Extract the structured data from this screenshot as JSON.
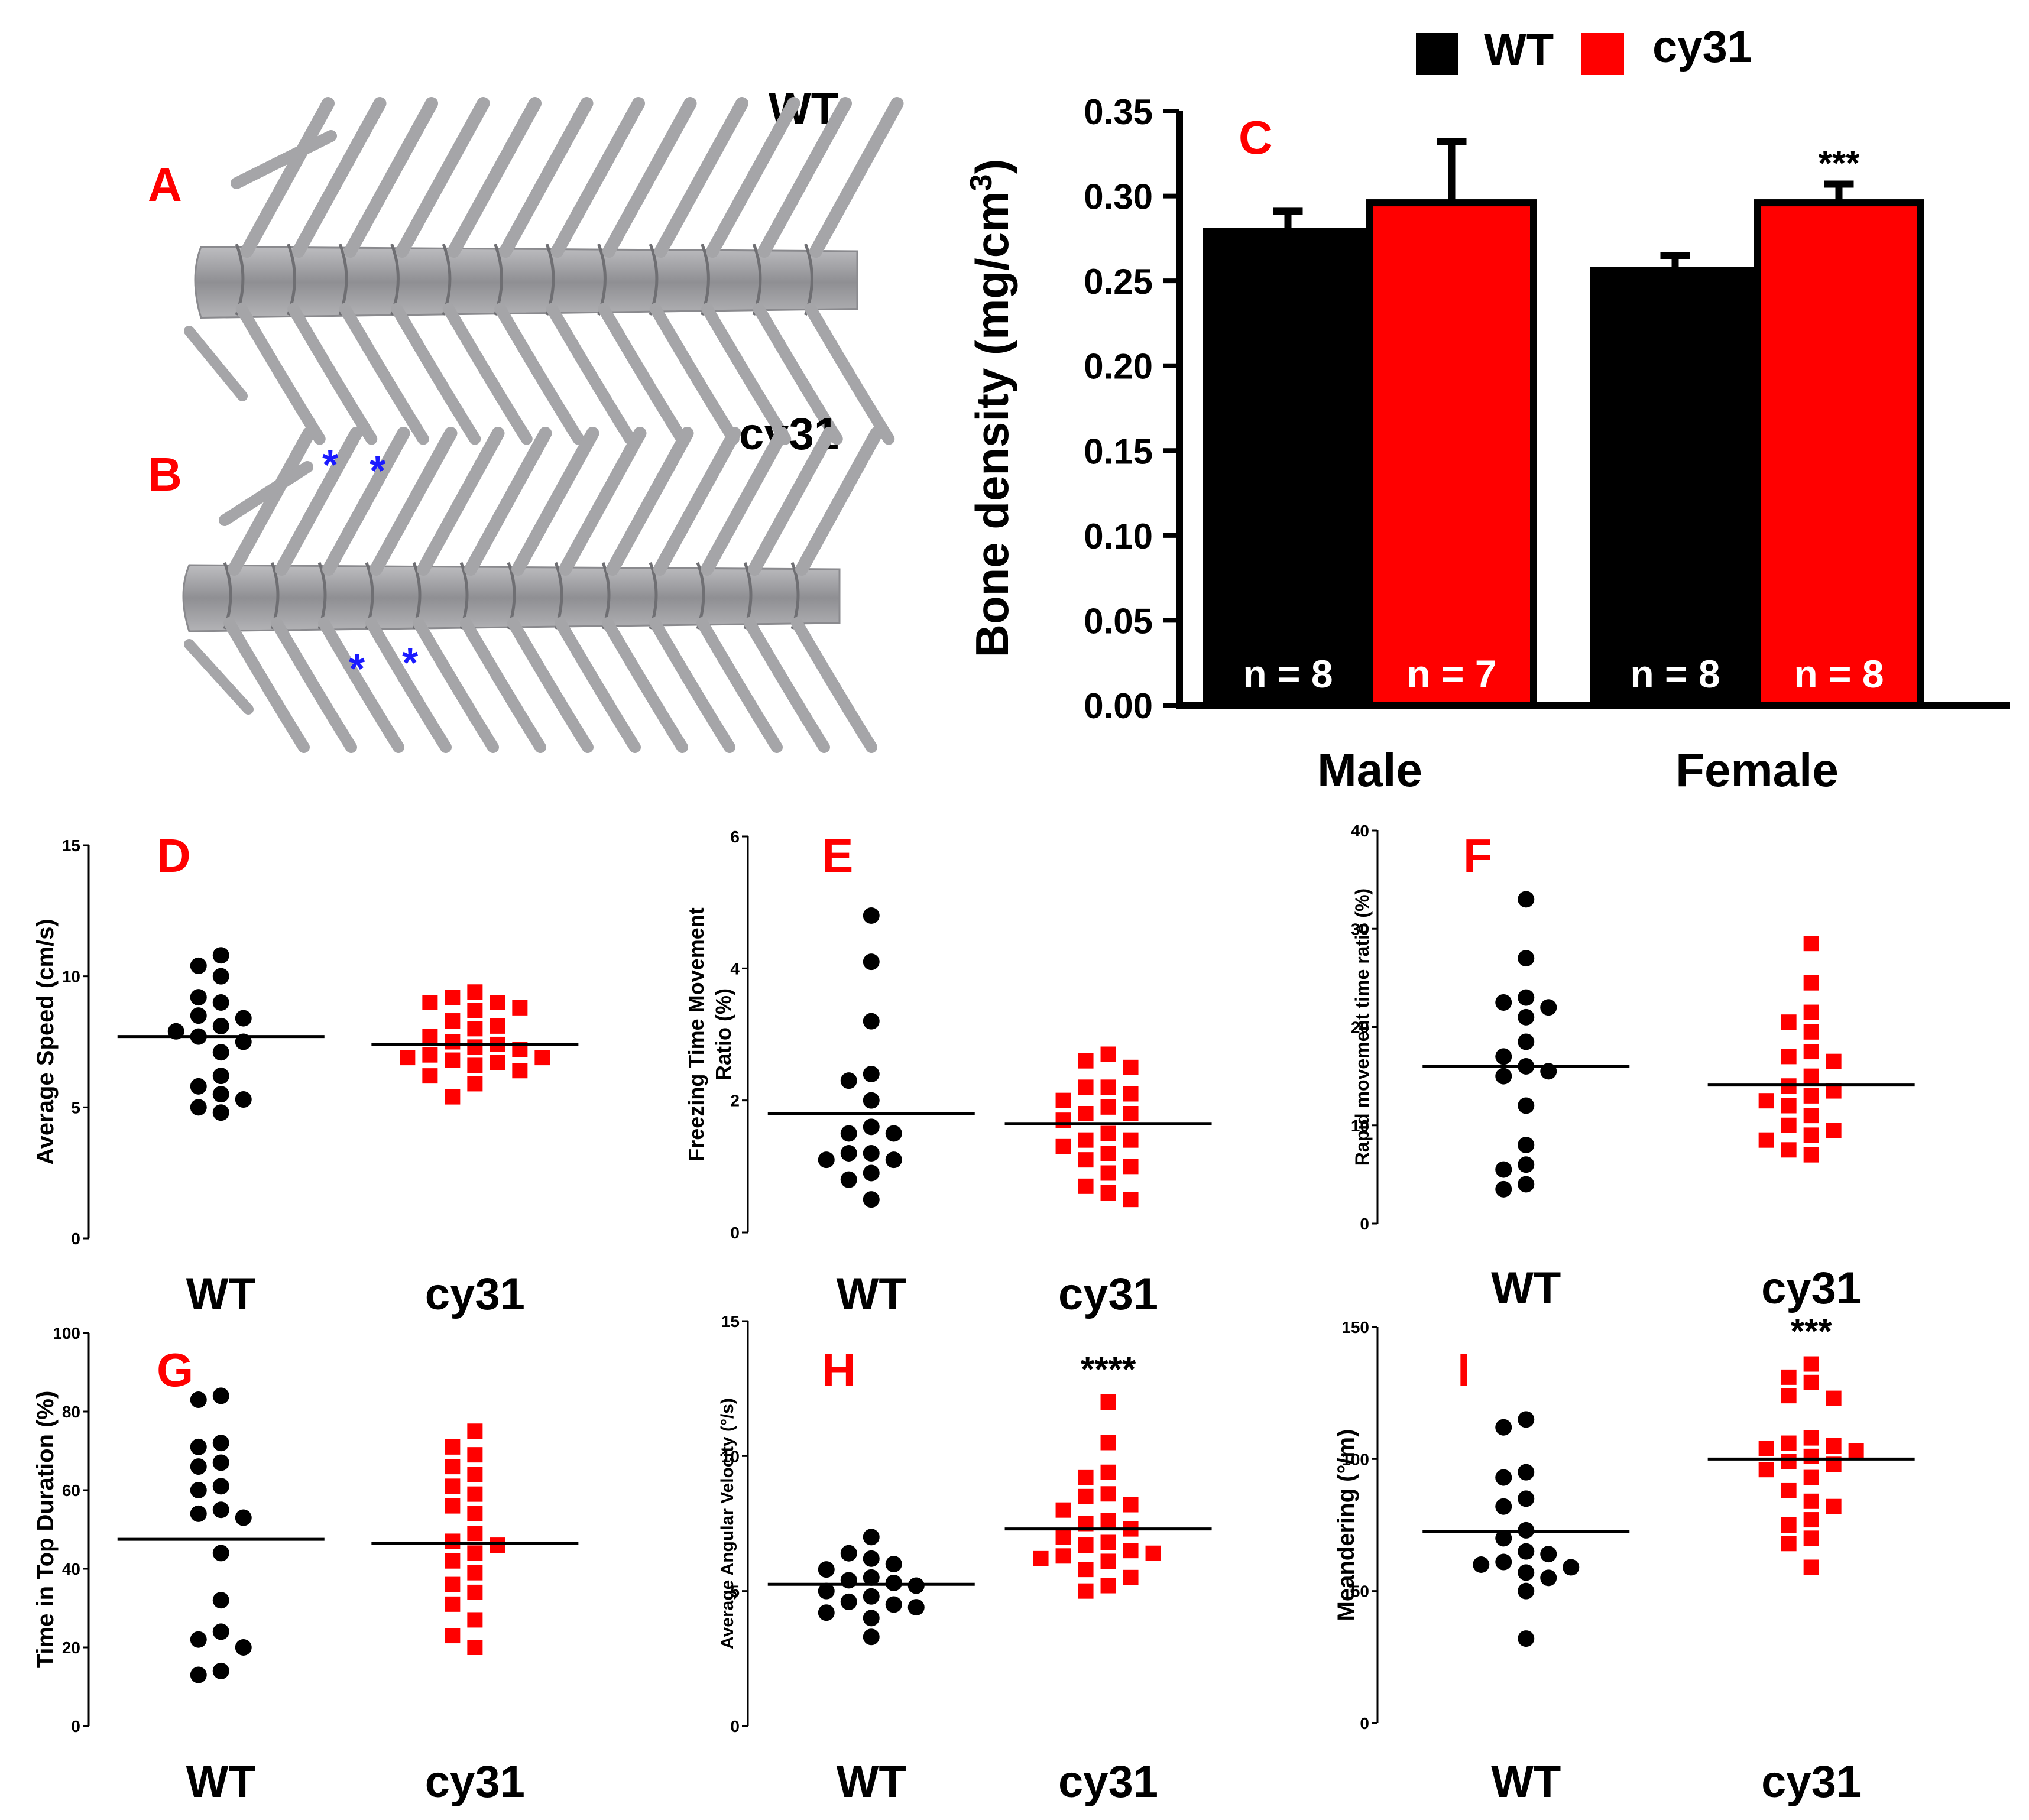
{
  "colors": {
    "wt": "#000000",
    "cy31": "#ff0000",
    "panel_letter": "#ff0000",
    "asterisk_blue": "#1a1aff",
    "bone": "#a9a9ab",
    "bone_dark": "#7c7c80"
  },
  "panels": {
    "A": {
      "letter": "A",
      "label": "WT"
    },
    "B": {
      "letter": "B",
      "label": "cy31",
      "marker": "*"
    }
  },
  "legend": {
    "wt": "WT",
    "cy31": "cy31"
  },
  "chart_data": [
    {
      "id": "C",
      "type": "bar",
      "letter": "C",
      "ylabel": "Bone density  (mg/cm",
      "ylabel_sup": "3",
      "ylabel_close": ")",
      "ylim": [
        0,
        0.35
      ],
      "yticks": [
        "0.00",
        "0.05",
        "0.10",
        "0.15",
        "0.20",
        "0.25",
        "0.30",
        "0.35"
      ],
      "categories": [
        "Male",
        "Female"
      ],
      "series": [
        {
          "name": "WT",
          "values": [
            0.279,
            0.256
          ],
          "errors": [
            0.012,
            0.009
          ],
          "n_labels": [
            "n = 8",
            "n = 8"
          ]
        },
        {
          "name": "cy31",
          "values": [
            0.296,
            0.296
          ],
          "errors": [
            0.036,
            0.011
          ],
          "n_labels": [
            "n = 7",
            "n = 8"
          ]
        }
      ],
      "significance": [
        "",
        "***"
      ]
    },
    {
      "id": "D",
      "type": "scatter",
      "letter": "D",
      "ylabel": "Average Speed (cm/s)",
      "ylim": [
        0,
        15
      ],
      "yticks": [
        "0",
        "5",
        "10",
        "15"
      ],
      "xlabels": [
        "WT",
        "cy31"
      ],
      "wt": [
        10.8,
        10.4,
        10.0,
        9.0,
        9.2,
        8.5,
        8.4,
        8.1,
        7.9,
        7.7,
        7.5,
        7.1,
        6.2,
        5.8,
        5.5,
        5.3,
        5.0,
        4.8
      ],
      "cy31": [
        9.4,
        9.2,
        9.0,
        9.0,
        8.8,
        8.7,
        8.3,
        8.1,
        8.0,
        7.7,
        7.5,
        7.4,
        7.3,
        7.2,
        7.0,
        6.9,
        6.9,
        6.8,
        6.7,
        6.6,
        6.4,
        6.2,
        5.9,
        5.4
      ],
      "wt_mean": 7.7,
      "cy31_mean": 7.4,
      "significance": ""
    },
    {
      "id": "E",
      "type": "scatter",
      "letter": "E",
      "ylabel": "Freezing Time Movement",
      "ylabel2": "Ratio (%)",
      "ylim": [
        0,
        6
      ],
      "yticks": [
        "0",
        "2",
        "4",
        "6"
      ],
      "xlabels": [
        "WT",
        "cy31"
      ],
      "wt": [
        4.8,
        4.1,
        3.2,
        2.4,
        2.3,
        2.0,
        1.6,
        1.5,
        1.5,
        1.2,
        1.2,
        1.1,
        1.1,
        0.9,
        0.8,
        0.5
      ],
      "cy31": [
        2.7,
        2.6,
        2.5,
        2.2,
        2.2,
        2.1,
        2.0,
        1.9,
        1.8,
        1.8,
        1.7,
        1.5,
        1.4,
        1.4,
        1.3,
        1.2,
        1.1,
        1.0,
        0.9,
        0.7,
        0.6,
        0.5
      ],
      "wt_mean": 1.8,
      "cy31_mean": 1.65,
      "significance": ""
    },
    {
      "id": "F",
      "type": "scatter",
      "letter": "F",
      "ylabel": "Rapid movement time ratio (%)",
      "ylim": [
        0,
        40
      ],
      "yticks": [
        "0",
        "10",
        "20",
        "30",
        "40"
      ],
      "xlabels": [
        "WT",
        "cy31"
      ],
      "wt": [
        33.0,
        27.0,
        23.0,
        22.5,
        22.0,
        21.0,
        18.5,
        17.0,
        16.0,
        15.5,
        15.0,
        12.0,
        8.0,
        6.0,
        5.5,
        4.0,
        3.5
      ],
      "cy31": [
        28.5,
        24.5,
        21.5,
        20.5,
        19.5,
        17.5,
        17.0,
        16.5,
        15.0,
        14.0,
        13.5,
        13.0,
        12.5,
        12.0,
        11.0,
        10.0,
        9.5,
        9.0,
        8.5,
        7.5,
        7.0
      ],
      "wt_mean": 16.0,
      "cy31_mean": 14.1,
      "significance": ""
    },
    {
      "id": "G",
      "type": "scatter",
      "letter": "G",
      "ylabel": "Time in Top Duration (%)",
      "ylim": [
        0,
        100
      ],
      "yticks": [
        "0",
        "20",
        "40",
        "60",
        "80",
        "100"
      ],
      "xlabels": [
        "WT",
        "cy31"
      ],
      "wt": [
        84,
        83,
        72,
        71,
        67,
        66,
        61,
        60,
        55,
        54,
        53,
        44,
        32,
        24,
        22,
        20,
        14,
        13
      ],
      "cy31": [
        75,
        71,
        69,
        66,
        64,
        61,
        59,
        56,
        54,
        49,
        47,
        46,
        44,
        42,
        39,
        36,
        34,
        31,
        27,
        23,
        20
      ],
      "wt_mean": 47.5,
      "cy31_mean": 46.5,
      "significance": ""
    },
    {
      "id": "H",
      "type": "scatter",
      "letter": "H",
      "ylabel": "Average Angular Velocity (°/s)",
      "ylim": [
        0,
        15
      ],
      "yticks": [
        "0",
        "5",
        "10",
        "15"
      ],
      "xlabels": [
        "WT",
        "cy31"
      ],
      "wt": [
        7.0,
        6.4,
        6.2,
        6.0,
        5.8,
        5.5,
        5.4,
        5.3,
        5.2,
        5.0,
        4.8,
        4.6,
        4.5,
        4.4,
        4.2,
        4.0,
        3.3
      ],
      "cy31": [
        12.0,
        10.5,
        9.4,
        9.2,
        8.6,
        8.5,
        8.2,
        8.0,
        7.6,
        7.5,
        7.3,
        7.0,
        6.8,
        6.7,
        6.5,
        6.4,
        6.3,
        6.2,
        6.1,
        5.8,
        5.5,
        5.2,
        5.0
      ],
      "wt_mean": 5.25,
      "cy31_mean": 7.3,
      "significance": "****"
    },
    {
      "id": "I",
      "type": "scatter",
      "letter": "I",
      "ylabel": "Meandering (°/m)",
      "ylim": [
        0,
        150
      ],
      "yticks": [
        "0",
        "50",
        "100",
        "150"
      ],
      "xlabels": [
        "WT",
        "cy31"
      ],
      "wt": [
        115,
        112,
        95,
        93,
        85,
        82,
        73,
        70,
        65,
        64,
        61,
        60,
        59,
        57,
        55,
        50,
        32
      ],
      "cy31": [
        136,
        131,
        129,
        124,
        123,
        108,
        106,
        105,
        104,
        103,
        101,
        99,
        98,
        96,
        93,
        88,
        84,
        82,
        77,
        75,
        70,
        68,
        59
      ],
      "wt_mean": 72.5,
      "cy31_mean": 100,
      "significance": "***"
    }
  ]
}
